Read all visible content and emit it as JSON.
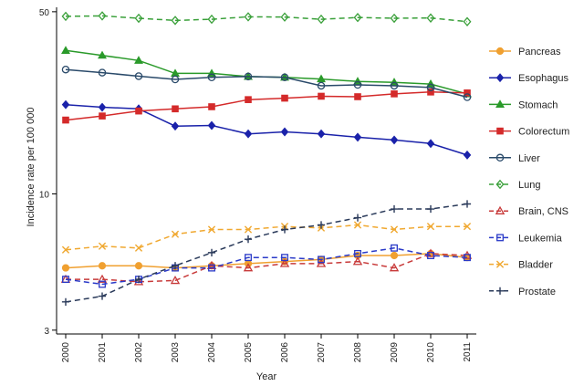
{
  "chart_data": {
    "type": "line",
    "xlabel": "Year",
    "ylabel": "Incidence rate per 100 000",
    "y_scale": "log",
    "ylim": [
      2.9,
      52
    ],
    "y_ticks": [
      3,
      10,
      50
    ],
    "x": [
      "2000",
      "2001",
      "2002",
      "2003",
      "2004",
      "2005",
      "2006",
      "2007",
      "2008",
      "2009",
      "2010",
      "2011"
    ],
    "legend_position": "right",
    "series": [
      {
        "name": "Pancreas",
        "color": "#f0a030",
        "dash": "solid",
        "marker": "circle",
        "values": [
          5.2,
          5.3,
          5.3,
          5.2,
          5.3,
          5.4,
          5.5,
          5.6,
          5.8,
          5.8,
          5.9,
          5.7
        ]
      },
      {
        "name": "Esophagus",
        "color": "#1a22aa",
        "dash": "solid",
        "marker": "diamond",
        "values": [
          22.0,
          21.5,
          21.2,
          18.2,
          18.3,
          17.0,
          17.3,
          17.0,
          16.5,
          16.1,
          15.6,
          14.1
        ]
      },
      {
        "name": "Stomach",
        "color": "#2a9a2a",
        "dash": "solid",
        "marker": "triangle",
        "values": [
          35.5,
          34.0,
          32.5,
          29.0,
          29.0,
          28.2,
          28.0,
          27.6,
          27.0,
          26.8,
          26.4,
          24.2
        ]
      },
      {
        "name": "Colorectum",
        "color": "#d42a2a",
        "dash": "solid",
        "marker": "square",
        "values": [
          19.2,
          19.9,
          20.8,
          21.2,
          21.6,
          23.0,
          23.3,
          23.7,
          23.6,
          24.2,
          24.6,
          24.4
        ]
      },
      {
        "name": "Liver",
        "color": "#2a4a6a",
        "dash": "solid",
        "marker": "circle-open",
        "values": [
          30.0,
          29.2,
          28.3,
          27.5,
          28.0,
          28.2,
          28.0,
          26.0,
          26.2,
          26.0,
          25.6,
          23.5
        ]
      },
      {
        "name": "Lung",
        "color": "#3aa03a",
        "dash": "dashed",
        "marker": "diamond-open",
        "values": [
          48.0,
          48.2,
          47.2,
          46.3,
          46.8,
          47.8,
          47.7,
          46.8,
          47.5,
          47.2,
          47.3,
          45.8
        ]
      },
      {
        "name": "Brain, CNS",
        "color": "#c83a3a",
        "dash": "dashed",
        "marker": "triangle-open",
        "values": [
          4.7,
          4.7,
          4.6,
          4.65,
          5.3,
          5.2,
          5.4,
          5.4,
          5.5,
          5.2,
          5.9,
          5.8
        ]
      },
      {
        "name": "Leukemia",
        "color": "#2a3ac8",
        "dash": "dashed",
        "marker": "square-open",
        "values": [
          4.7,
          4.5,
          4.7,
          5.2,
          5.2,
          5.7,
          5.7,
          5.6,
          5.9,
          6.2,
          5.8,
          5.7
        ]
      },
      {
        "name": "Bladder",
        "color": "#f0a830",
        "dash": "dashed",
        "marker": "x",
        "values": [
          6.1,
          6.3,
          6.2,
          7.0,
          7.3,
          7.3,
          7.5,
          7.4,
          7.6,
          7.3,
          7.5,
          7.5
        ]
      },
      {
        "name": "Prostate",
        "color": "#2a3a5a",
        "dash": "dashed",
        "marker": "plus",
        "values": [
          3.85,
          4.05,
          4.7,
          5.3,
          5.95,
          6.7,
          7.3,
          7.6,
          8.1,
          8.75,
          8.75,
          9.15
        ]
      }
    ]
  }
}
